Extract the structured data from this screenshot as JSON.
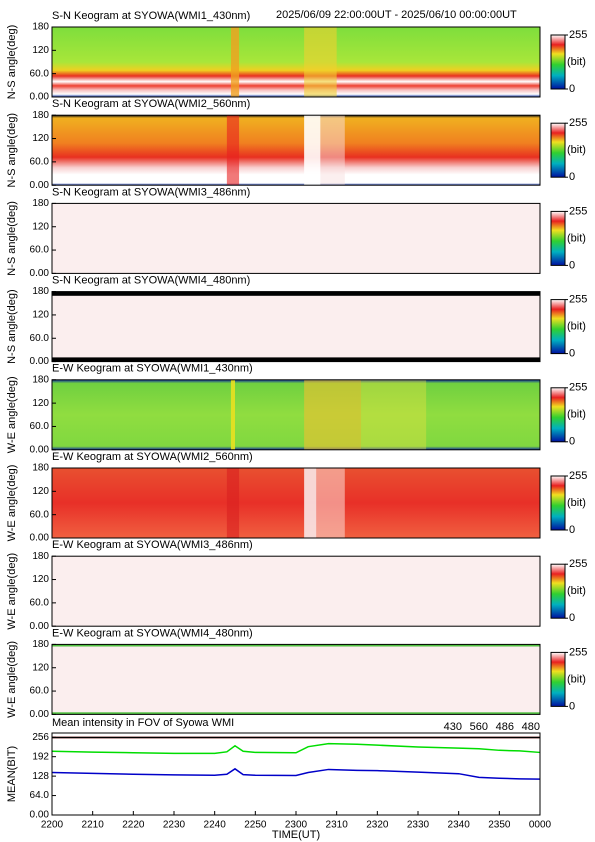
{
  "header_range": "2025/06/09 22:00:00UT - 2025/06/10 00:00:00UT",
  "keograms": {
    "ylim": [
      0,
      180
    ],
    "yticks": [
      {
        "value": 0,
        "label": "0.00"
      },
      {
        "value": 60,
        "label": "60.0"
      },
      120,
      180
    ],
    "colorbar_lim": [
      0,
      255
    ],
    "colorbar_ticks": [
      0,
      255
    ],
    "colorbar_unit": "(bit)",
    "panels": [
      {
        "title": "S-N Keogram at SYOWA(WMI1_430nm)",
        "ylabel": "N-S angle(deg)"
      },
      {
        "title": "S-N Keogram at SYOWA(WMI2_560nm)",
        "ylabel": "N-S angle(deg)"
      },
      {
        "title": "S-N Keogram at SYOWA(WMI3_486nm)",
        "ylabel": "N-S angle(deg)"
      },
      {
        "title": "S-N Keogram at SYOWA(WMI4_480nm)",
        "ylabel": "N-S angle(deg)"
      },
      {
        "title": "E-W Keogram at SYOWA(WMI1_430nm)",
        "ylabel": "W-E angle(deg)"
      },
      {
        "title": "E-W Keogram at SYOWA(WMI2_560nm)",
        "ylabel": "W-E angle(deg)"
      },
      {
        "title": "E-W Keogram at SYOWA(WMI3_486nm)",
        "ylabel": "W-E angle(deg)"
      },
      {
        "title": "E-W Keogram at SYOWA(WMI4_480nm)",
        "ylabel": "W-E angle(deg)"
      }
    ]
  },
  "chart_data": {
    "type": "line",
    "title": "Mean intensity in FOV of Syowa WMI",
    "x_label": "TIME(UT)",
    "y_label": "MEAN(BIT)",
    "x": [
      0,
      10,
      20,
      30,
      40,
      43,
      45,
      47,
      50,
      60,
      63,
      68,
      75,
      80,
      90,
      100,
      105,
      110,
      115,
      120
    ],
    "xlim": [
      0,
      120
    ],
    "xticks": [
      {
        "value": 0,
        "label": "2200"
      },
      {
        "value": 10,
        "label": "2210"
      },
      {
        "value": 20,
        "label": "2220"
      },
      {
        "value": 30,
        "label": "2230"
      },
      {
        "value": 40,
        "label": "2240"
      },
      {
        "value": 50,
        "label": "2250"
      },
      {
        "value": 60,
        "label": "2300"
      },
      {
        "value": 70,
        "label": "2310"
      },
      {
        "value": 80,
        "label": "2320"
      },
      {
        "value": 90,
        "label": "2330"
      },
      {
        "value": 100,
        "label": "2340"
      },
      {
        "value": 110,
        "label": "2350"
      },
      {
        "value": 120,
        "label": "0000"
      }
    ],
    "ylim": [
      0,
      270
    ],
    "yticks": [
      {
        "value": 0,
        "label": "0.00"
      },
      {
        "value": 64,
        "label": "64.0"
      },
      128,
      192,
      256
    ],
    "series": [
      {
        "name": "430",
        "color": "#0000c8",
        "values": [
          140,
          137,
          134,
          132,
          131,
          134,
          152,
          133,
          131,
          130,
          140,
          150,
          147,
          146,
          141,
          136,
          124,
          121,
          119,
          118
        ]
      },
      {
        "name": "560",
        "color": "#00dd00",
        "values": [
          210,
          207,
          205,
          203,
          203,
          208,
          228,
          210,
          206,
          205,
          225,
          235,
          233,
          230,
          224,
          220,
          218,
          213,
          211,
          206
        ]
      },
      {
        "name": "486",
        "color": "#dd0000",
        "values": [
          255,
          255,
          255,
          255,
          255,
          255,
          255,
          255,
          255,
          255,
          255,
          255,
          255,
          255,
          255,
          255,
          255,
          255,
          255,
          255
        ]
      },
      {
        "name": "480",
        "color": "#000000",
        "values": [
          255,
          255,
          255,
          255,
          255,
          255,
          255,
          255,
          255,
          255,
          255,
          255,
          255,
          255,
          255,
          255,
          255,
          255,
          255,
          255
        ]
      }
    ]
  }
}
